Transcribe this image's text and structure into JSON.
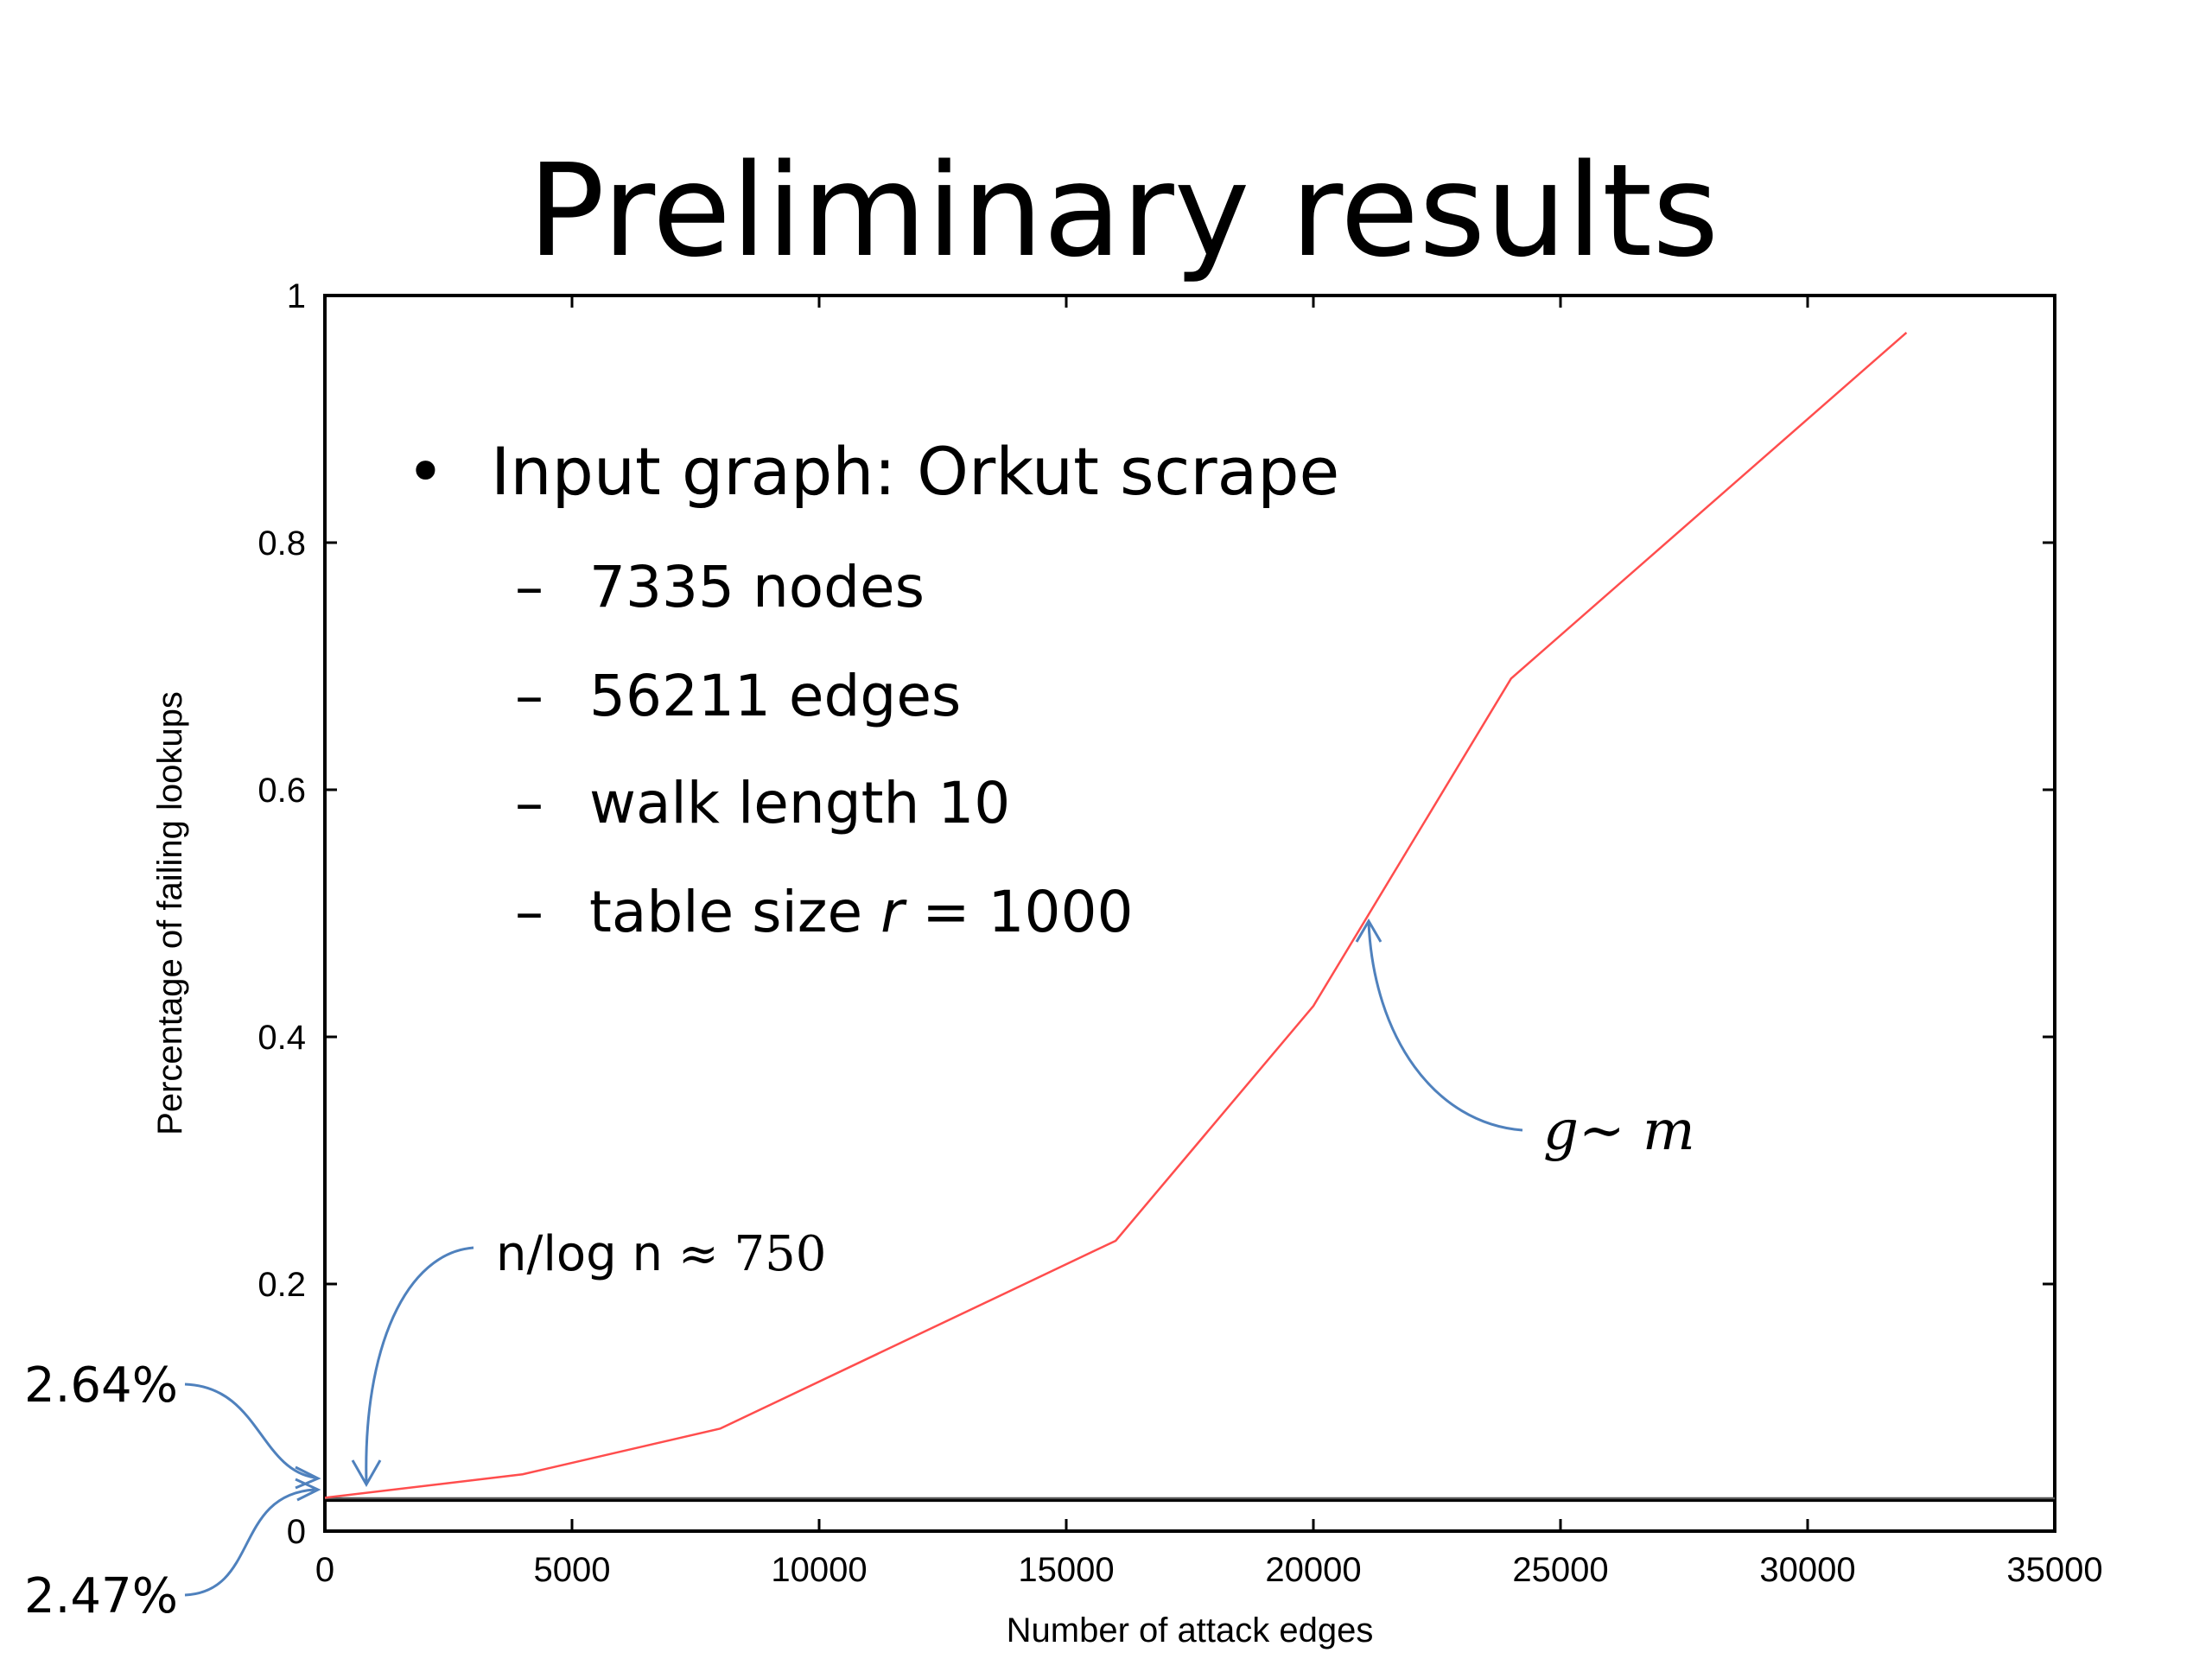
{
  "slide": {
    "title": "Preliminary results",
    "bullet": "Input graph: Orkut scrape",
    "bullet_mark": "•",
    "sub_dash": "–",
    "sub_items": [
      "7335 nodes",
      "56211 edges",
      "walk length 10"
    ],
    "sub_item_last_prefix": "table size ",
    "sub_item_last_var": "r",
    "sub_item_last_suffix": " = 1000"
  },
  "annotations": {
    "nlogn_text": "n/log n ",
    "nlogn_value": "≈ 750",
    "g_m": "g∼ m",
    "upper_pct": "2.64%",
    "lower_pct": "2.47%",
    "arrow_color": "#4f81bd"
  },
  "chart_data": {
    "type": "line",
    "xlabel": "Number of attack edges",
    "ylabel": "Percentage of failing lookups",
    "xlim": [
      0,
      35000
    ],
    "ylim": [
      0,
      1
    ],
    "xticks": [
      0,
      5000,
      10000,
      15000,
      20000,
      25000,
      30000,
      35000
    ],
    "yticks": [
      0,
      0.2,
      0.4,
      0.6,
      0.8,
      1
    ],
    "ytick_labels": [
      "0",
      "0.2",
      "0.4",
      "0.6",
      "0.8",
      "1"
    ],
    "series": [
      {
        "color": "#ff4d4d",
        "x": [
          0,
          4000,
          8000,
          16000,
          20000,
          24000,
          32000
        ],
        "y": [
          0.027,
          0.046,
          0.083,
          0.235,
          0.425,
          0.69,
          0.97
        ]
      }
    ],
    "reference_lines": [
      {
        "y": 0.0264,
        "color": "#555555"
      },
      {
        "y": 0.0247,
        "color": "#000000"
      }
    ],
    "grid": false
  }
}
